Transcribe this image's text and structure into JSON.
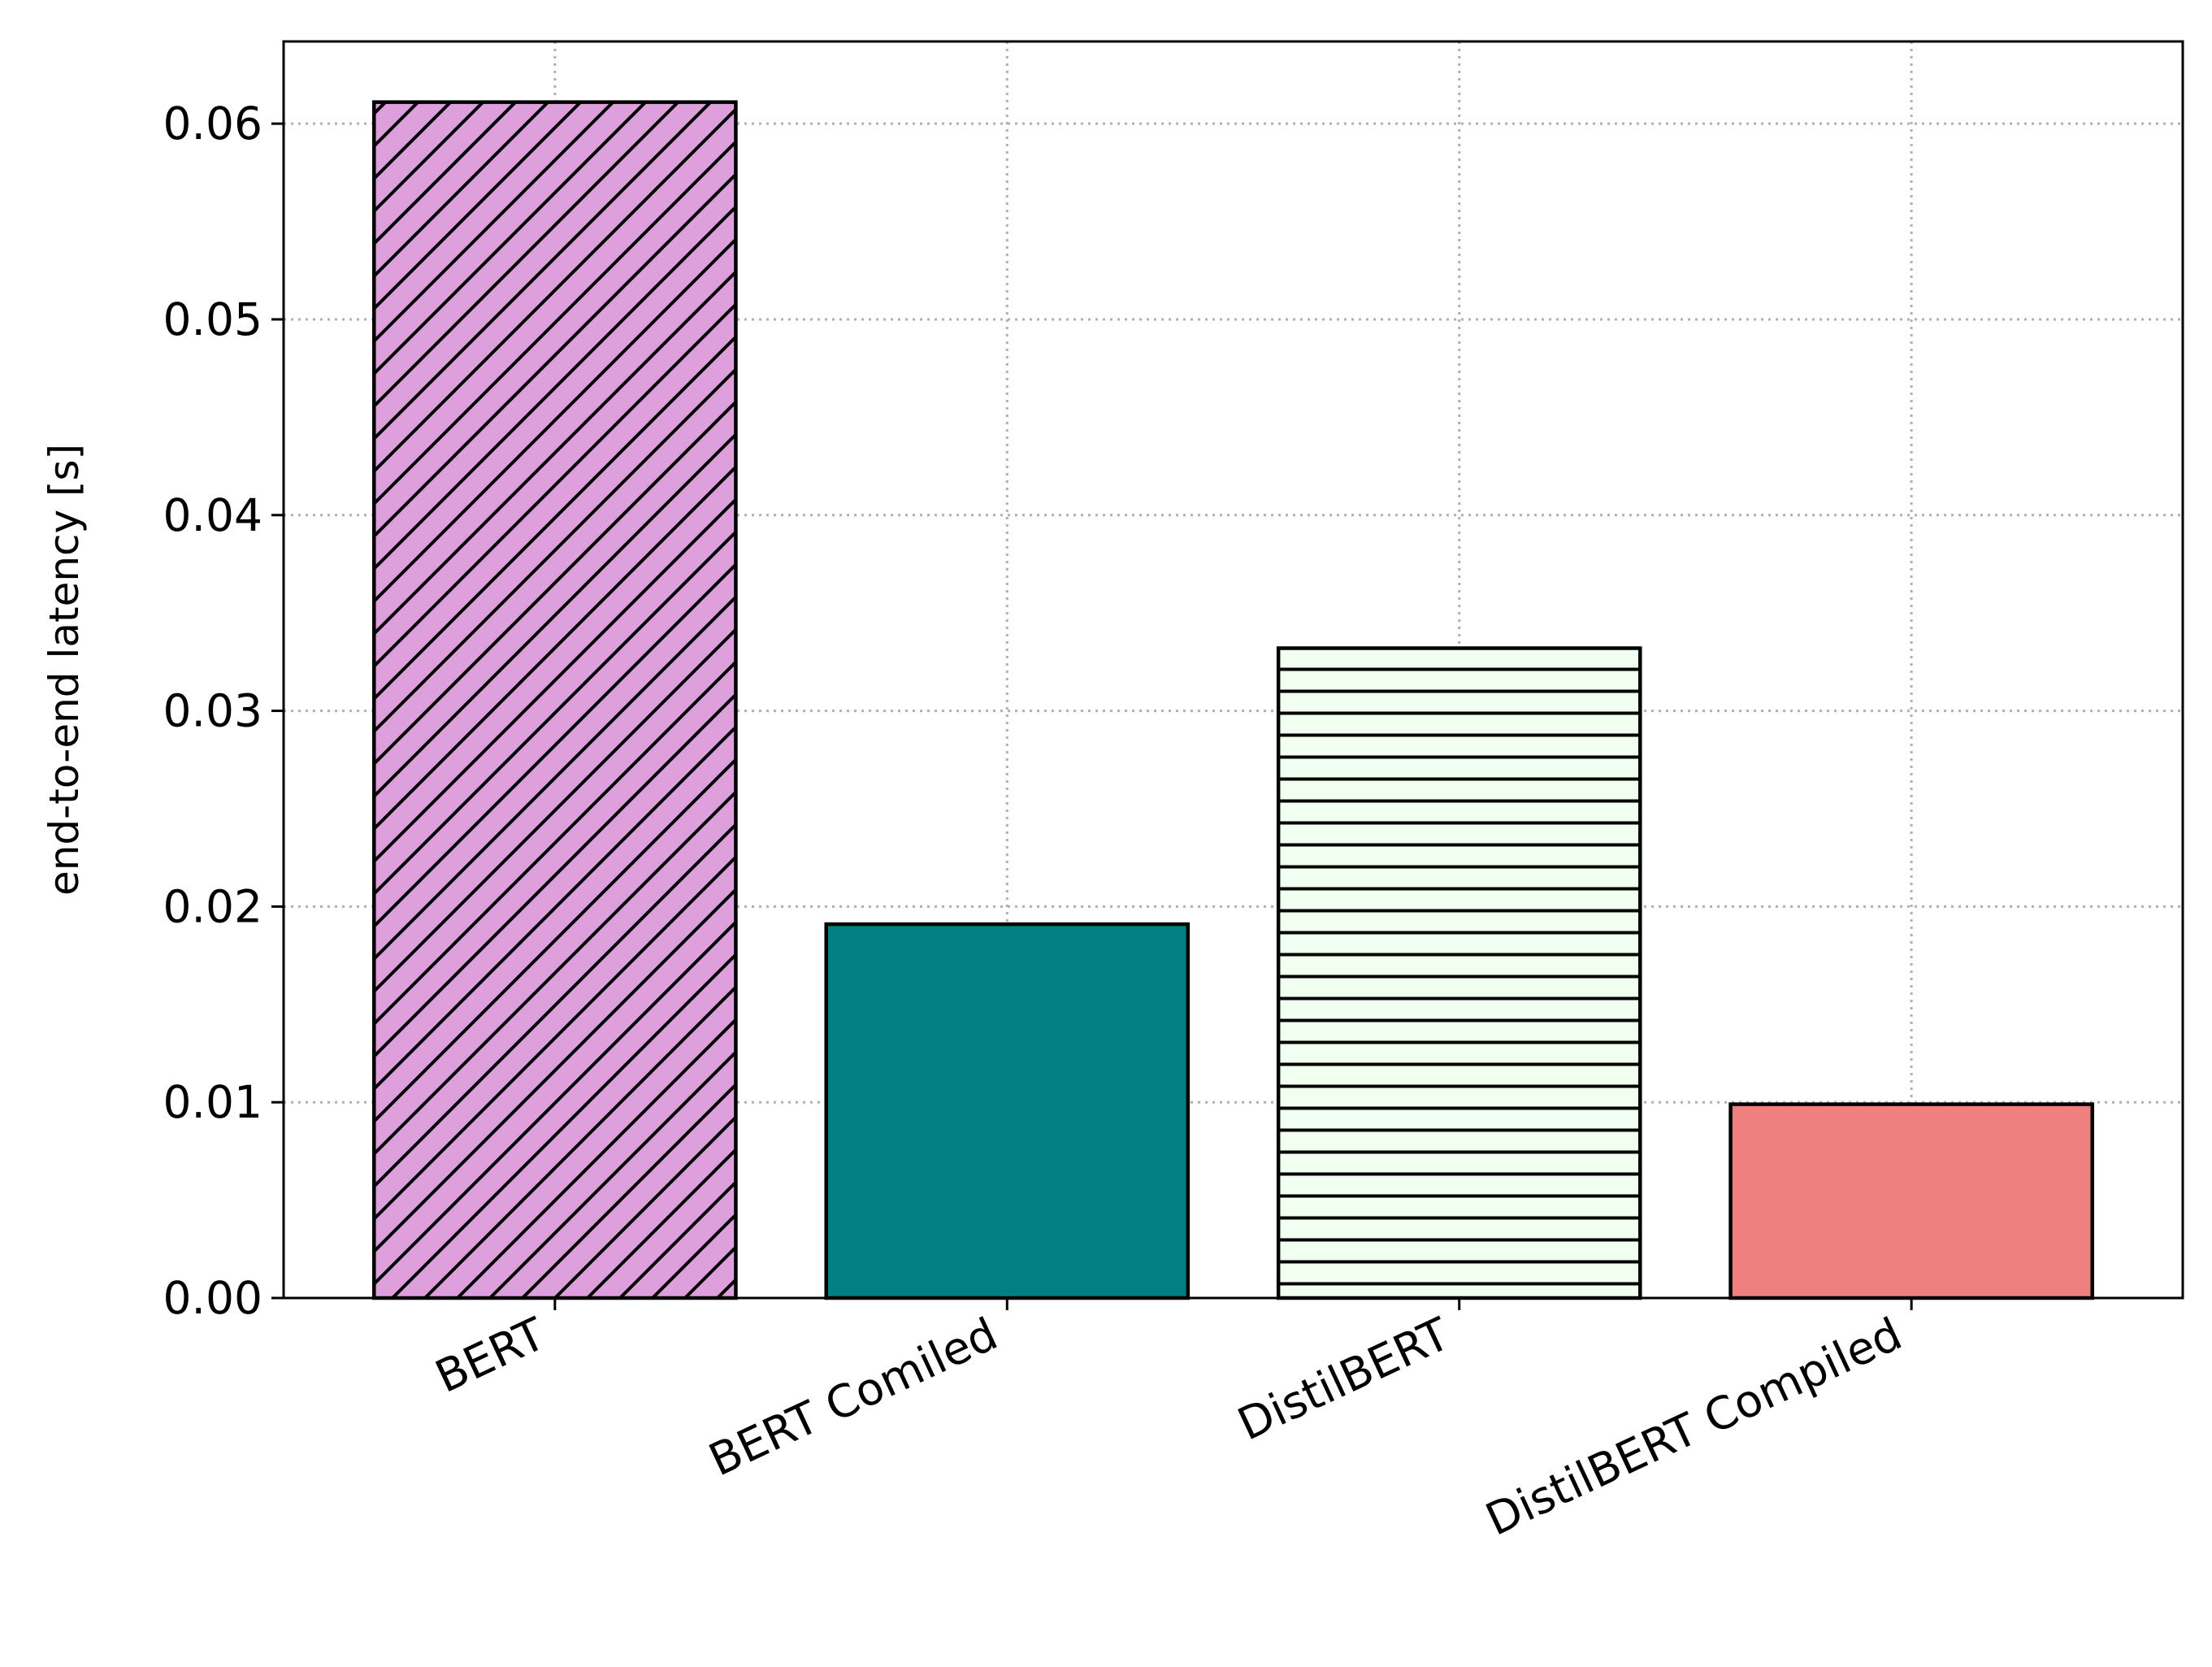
{
  "chart_data": {
    "type": "bar",
    "title": "",
    "xlabel": "",
    "ylabel": "end-to-end latency [s]",
    "categories": [
      "BERT",
      "BERT Comiled",
      "DistilBERT",
      "DistilBERT Compiled"
    ],
    "values": [
      0.0611,
      0.0191,
      0.0332,
      0.0099
    ],
    "colors": [
      "#DDA0DD",
      "#008080",
      "#F0FFF0",
      "#F08080"
    ],
    "hatches": [
      "diagonal",
      "none",
      "horizontal",
      "none"
    ],
    "edge_color": "#000000",
    "ylim": [
      0,
      0.0642
    ],
    "yticks": [
      0.0,
      0.01,
      0.02,
      0.03,
      0.04,
      0.05,
      0.06
    ],
    "ytick_labels": [
      "0.00",
      "0.01",
      "0.02",
      "0.03",
      "0.04",
      "0.05",
      "0.06"
    ],
    "grid": true,
    "grid_style": "dotted",
    "legend": "none"
  }
}
